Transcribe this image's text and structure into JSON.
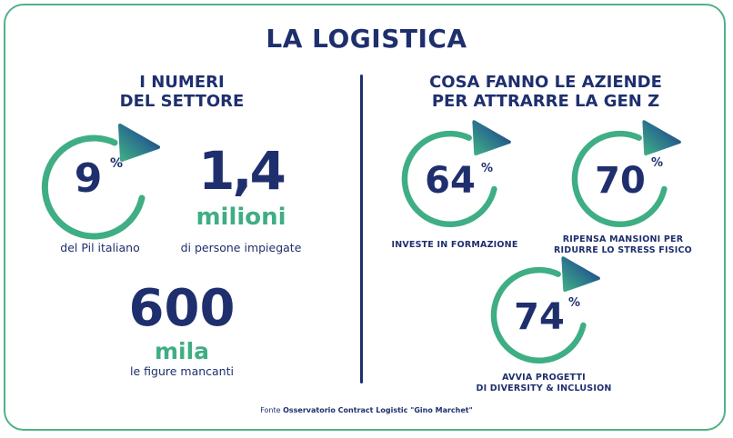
{
  "title": "LA LOGISTICA",
  "left": {
    "heading_line1": "I NUMERI",
    "heading_line2": "DEL SETTORE",
    "stat_pil": {
      "value": "9",
      "unit": "%",
      "caption": "del Pil italiano",
      "ring_fraction": 0.75
    },
    "stat_persone": {
      "value": "1,4",
      "unit": "milioni",
      "caption": "di persone impiegate"
    },
    "stat_figure": {
      "value": "600",
      "unit": "mila",
      "caption": "le figure mancanti"
    }
  },
  "right": {
    "heading_line1": "COSA FANNO LE AZIENDE",
    "heading_line2": "PER ATTRARRE LA GEN Z",
    "stat_formazione": {
      "value": "64",
      "unit": "%",
      "caption": "INVESTE IN FORMAZIONE"
    },
    "stat_mansioni": {
      "value": "70",
      "unit": "%",
      "caption_line1": "RIPENSA MANSIONI PER",
      "caption_line2": "RIDURRE LO STRESS FISICO"
    },
    "stat_diversity": {
      "value": "74",
      "unit": "%",
      "caption_line1": "AVVIA PROGETTI",
      "caption_line2": "DI DIVERSITY & INCLUSION"
    }
  },
  "source": {
    "label": "Fonte",
    "text": "Osservatorio Contract Logistic \"Gino Marchet\""
  },
  "colors": {
    "navy": "#1f2f6e",
    "green": "#3fae84",
    "border": "#4db386"
  }
}
